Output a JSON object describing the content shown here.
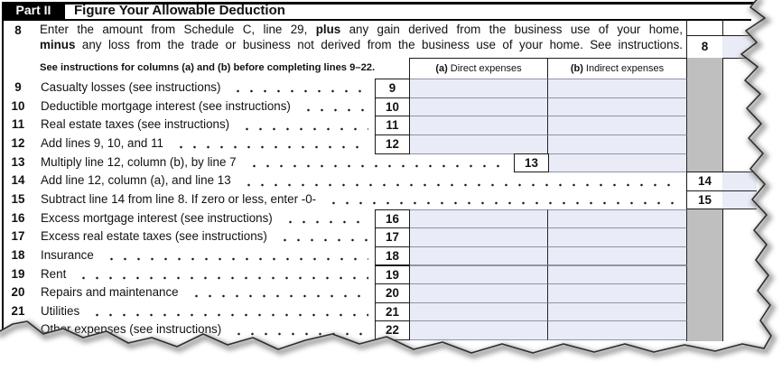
{
  "form": {
    "part_label": "Part II",
    "part_title": "Figure Your Allowable Deduction",
    "line8": {
      "num": "8",
      "box_num": "8",
      "line1_pre": "Enter the amount from Schedule C, line 29, ",
      "line1_bold": "plus",
      "line1_post": " any gain derived from the business use of your home,",
      "line2_bold": "minus",
      "line2_post": " any loss from the trade or business not derived from the business use of your home. See instructions."
    },
    "see_note": "See instructions for columns (a) and (b) before completing lines 9–22.",
    "col_a": {
      "prefix": "(a)",
      "label": "Direct expenses"
    },
    "col_b": {
      "prefix": "(b)",
      "label": "Indirect expenses"
    },
    "rows": [
      {
        "num": "9",
        "label": "Casualty losses (see instructions)",
        "layout": "ab"
      },
      {
        "num": "10",
        "label": "Deductible mortgage interest (see instructions)",
        "layout": "ab"
      },
      {
        "num": "11",
        "label": "Real estate taxes (see instructions)",
        "layout": "ab"
      },
      {
        "num": "12",
        "label": "Add lines 9, 10, and 11",
        "layout": "ab"
      },
      {
        "num": "13",
        "label": "Multiply line 12, column (b), by line 7",
        "layout": "b"
      },
      {
        "num": "14",
        "label": "Add line 12, column (a), and line 13",
        "layout": "r"
      },
      {
        "num": "15",
        "label": "Subtract line 14 from line 8. If zero or less, enter -0-",
        "layout": "r"
      },
      {
        "num": "16",
        "label": "Excess mortgage interest (see instructions)",
        "layout": "ab"
      },
      {
        "num": "17",
        "label": "Excess real estate taxes (see instructions)",
        "layout": "ab"
      },
      {
        "num": "18",
        "label": "Insurance",
        "layout": "ab"
      },
      {
        "num": "19",
        "label": "Rent",
        "layout": "ab"
      },
      {
        "num": "20",
        "label": "Repairs and maintenance",
        "layout": "ab"
      },
      {
        "num": "21",
        "label": "Utilities",
        "layout": "ab"
      },
      {
        "num": "22",
        "label": "Other expenses (see instructions)",
        "layout": "ab"
      }
    ],
    "colors": {
      "entry_field_blue": "#e9ecf7",
      "shaded_column_gray": "#bfbfbf",
      "header_black": "#000000"
    }
  }
}
